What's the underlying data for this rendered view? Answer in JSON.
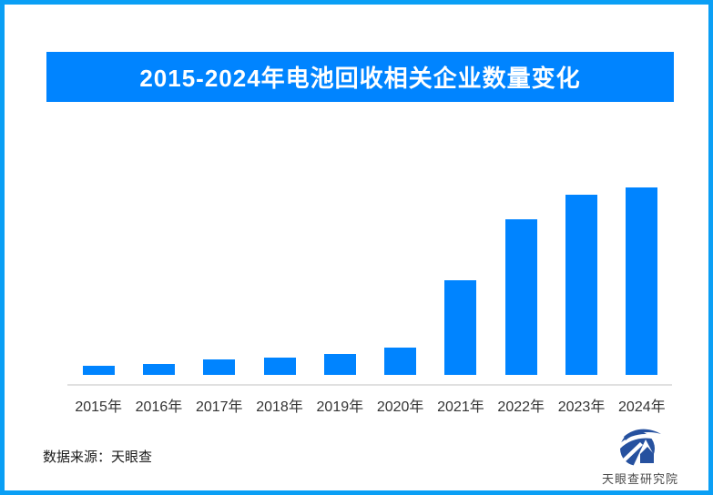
{
  "page": {
    "border_color": "#0a9ff5",
    "background_color": "#ffffff"
  },
  "header": {
    "title": "2015-2024年电池回收相关企业数量变化",
    "banner_color": "#0084ff",
    "title_color": "#ffffff"
  },
  "chart_data": {
    "type": "bar",
    "title": "2015-2024年电池回收相关企业数量变化",
    "categories": [
      "2015年",
      "2016年",
      "2017年",
      "2018年",
      "2019年",
      "2020年",
      "2021年",
      "2022年",
      "2023年",
      "2024年"
    ],
    "values": [
      10,
      12,
      17,
      19,
      23,
      30,
      104,
      171,
      198,
      206
    ],
    "value_scale": "relative bar heights; no y-axis, gridlines or data labels shown in chart",
    "xlabel": "",
    "ylabel": "",
    "ylim": [
      0,
      210
    ],
    "grid": false,
    "legend": false,
    "bar_color": "#0084ff",
    "axis_line_color": "#e0e0e0",
    "tick_label_color": "#333333"
  },
  "footer": {
    "source_label": "数据来源：天眼查"
  },
  "logo": {
    "caption": "天眼查研究院",
    "mark_color": "#26519f",
    "mark_icon": "tianyancha-eye-logo"
  }
}
